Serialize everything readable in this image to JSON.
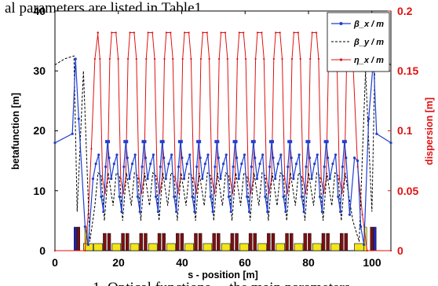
{
  "header_text": "al parameters are listed in Table1.",
  "caption_text": "1. Optical functions ... the main parameters ...",
  "colors": {
    "beta_x": "#1f3fd0",
    "beta_y": "#000000",
    "eta_x": "#e01010",
    "right_axis": "#e01010",
    "magnet_yellow": "#f2e61a",
    "magnet_dark": "#7a1010",
    "magnet_blue": "#2222aa"
  },
  "chart_data": {
    "type": "line",
    "xlabel": "s - position [m]",
    "ylabel_left": "betafunction [m]",
    "ylabel_right": "dispersion [m]",
    "xlim": [
      0,
      106
    ],
    "ylim_left": [
      0,
      40
    ],
    "ylim_right": [
      0,
      0.2
    ],
    "x_ticks": [
      "0",
      "20",
      "40",
      "60",
      "80",
      "100"
    ],
    "y_ticks_left": [
      "0",
      "10",
      "20",
      "30",
      "40"
    ],
    "y_ticks_right": [
      "0",
      "0.05",
      "0.1",
      "0.15",
      "0.2"
    ],
    "legend": {
      "placement": "top-right",
      "entries": [
        "β_x / m",
        "β_y / m",
        "η_x / m"
      ]
    },
    "cells": {
      "count": 14,
      "start": 12.0,
      "period": 5.75
    },
    "series": [
      {
        "name": "β_x / m",
        "axis": "left",
        "style": "solid-dotted",
        "x": [
          0,
          5.5,
          6.5,
          7.5,
          9.5,
          10.5,
          12.0,
          13.5,
          14.875,
          15.8,
          16.25,
          17.75,
          18.5,
          19.25,
          20.65,
          21.1,
          22.1,
          23.5,
          25.0,
          26.3
        ],
        "y": [
          18,
          19.5,
          32,
          22,
          4,
          1,
          12,
          14.5,
          16,
          10,
          6.5,
          15.5,
          18.2,
          15.5,
          6.5,
          10,
          14,
          6,
          15.5,
          18.2
        ]
      },
      {
        "name": "β_y / m",
        "axis": "left",
        "style": "dashed",
        "x": [
          0,
          3.0,
          6.0,
          7.0,
          9.0,
          11.0,
          12.8,
          14.0,
          15.5,
          16.8,
          18.5,
          20.0,
          21.5,
          22.8,
          24.0
        ],
        "y": [
          31,
          32,
          32.5,
          6.5,
          30,
          1.5,
          7.5,
          13,
          12,
          5,
          13,
          5,
          14,
          12,
          5
        ]
      },
      {
        "name": "η_x / m",
        "axis": "right",
        "style": "solid-dotted",
        "x": [
          0,
          9.5,
          10.5,
          12.0,
          13.4,
          14.5,
          15.4,
          16.6,
          17.75,
          18.8,
          19.9,
          21.1,
          22.2,
          23.5,
          95.0,
          97.0,
          100.0,
          106.0
        ],
        "y": [
          0.0,
          0.0,
          0.03,
          0.085,
          0.16,
          0.182,
          0.182,
          0.16,
          0.06,
          0.048,
          0.06,
          0.16,
          0.182,
          0.182,
          0.16,
          0.07,
          0.0,
          0.0
        ]
      }
    ]
  }
}
